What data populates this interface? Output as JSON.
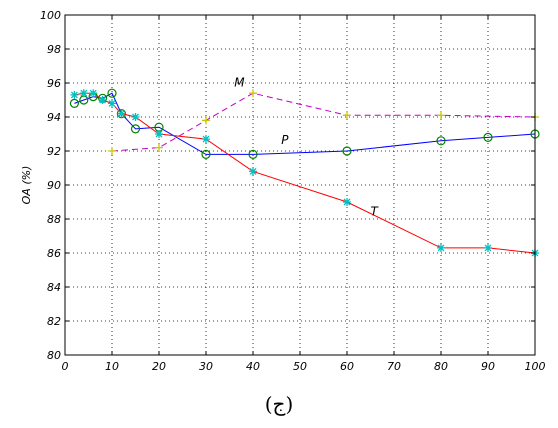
{
  "caption": "(ج)",
  "chart_data": {
    "type": "line",
    "ylabel": "OA (%)",
    "xlim": [
      0,
      100
    ],
    "ylim": [
      80,
      100
    ],
    "xticks": [
      0,
      10,
      20,
      30,
      40,
      50,
      60,
      70,
      80,
      90,
      100
    ],
    "yticks": [
      80,
      82,
      84,
      86,
      88,
      90,
      92,
      94,
      96,
      98,
      100
    ],
    "grid": true,
    "series": [
      {
        "name": "P",
        "color": "#0000ff",
        "line": "solid",
        "marker": "circle",
        "marker_color": "#008000",
        "x": [
          2,
          4,
          6,
          8,
          10,
          12,
          15,
          20,
          30,
          40,
          60,
          80,
          90,
          100
        ],
        "y": [
          94.8,
          95.0,
          95.2,
          95.1,
          95.4,
          94.2,
          93.3,
          93.4,
          91.8,
          91.8,
          92.0,
          92.6,
          92.8,
          93.0
        ]
      },
      {
        "name": "T",
        "color": "#ff0000",
        "line": "solid",
        "marker": "asterisk",
        "marker_color": "#00c0c0",
        "x": [
          2,
          4,
          6,
          8,
          10,
          12,
          15,
          20,
          30,
          40,
          60,
          80,
          90,
          100
        ],
        "y": [
          95.3,
          95.4,
          95.4,
          95.0,
          94.8,
          94.2,
          94.0,
          93.0,
          92.7,
          90.8,
          89.0,
          86.3,
          86.3,
          86.0
        ]
      },
      {
        "name": "M",
        "color": "#c000c0",
        "line": "dashed",
        "marker": "plus",
        "marker_color": "#c8c800",
        "x": [
          10,
          20,
          30,
          40,
          60,
          80,
          100
        ],
        "y": [
          92.0,
          92.2,
          93.8,
          95.4,
          94.1,
          94.1,
          94.0
        ]
      }
    ],
    "annotations": [
      {
        "text": "M",
        "x": 36,
        "y": 95.8
      },
      {
        "text": "P",
        "x": 46,
        "y": 92.4
      },
      {
        "text": "T",
        "x": 65,
        "y": 88.2
      }
    ]
  }
}
